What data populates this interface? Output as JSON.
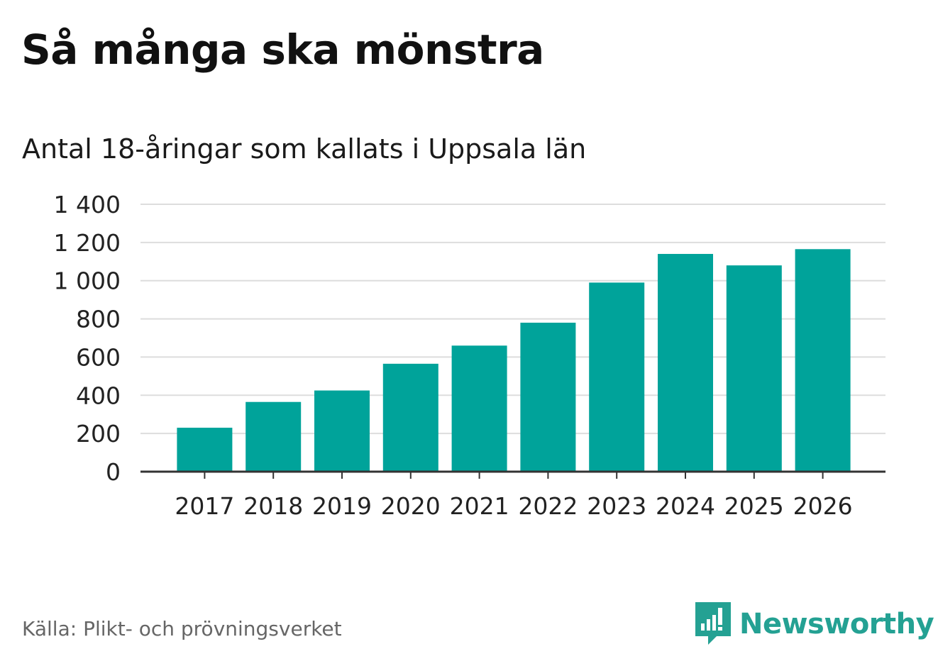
{
  "header": {
    "title": "Så många ska mönstra",
    "subtitle": "Antal 18-åringar som kallats i Uppsala län"
  },
  "footer": {
    "source": "Källa: Plikt- och prövningsverket",
    "brand_name": "Newsworthy",
    "brand_icon": "bar-chart-speech-bubble-icon"
  },
  "colors": {
    "bar": "#00a39a",
    "grid": "#dddddd",
    "axis": "#333333",
    "brand": "#24a193"
  },
  "chart_data": {
    "type": "bar",
    "title": "Så många ska mönstra",
    "subtitle": "Antal 18-åringar som kallats i Uppsala län",
    "xlabel": "",
    "ylabel": "",
    "categories": [
      "2017",
      "2018",
      "2019",
      "2020",
      "2021",
      "2022",
      "2023",
      "2024",
      "2025",
      "2026"
    ],
    "values": [
      230,
      365,
      425,
      565,
      660,
      780,
      990,
      1140,
      1080,
      1165
    ],
    "ylim": [
      0,
      1400
    ],
    "yticks": [
      0,
      200,
      400,
      600,
      800,
      1000,
      1200,
      1400
    ],
    "ytick_labels": [
      "0",
      "200",
      "400",
      "600",
      "800",
      "1 000",
      "1 200",
      "1 400"
    ],
    "grid": true,
    "legend": "none"
  }
}
